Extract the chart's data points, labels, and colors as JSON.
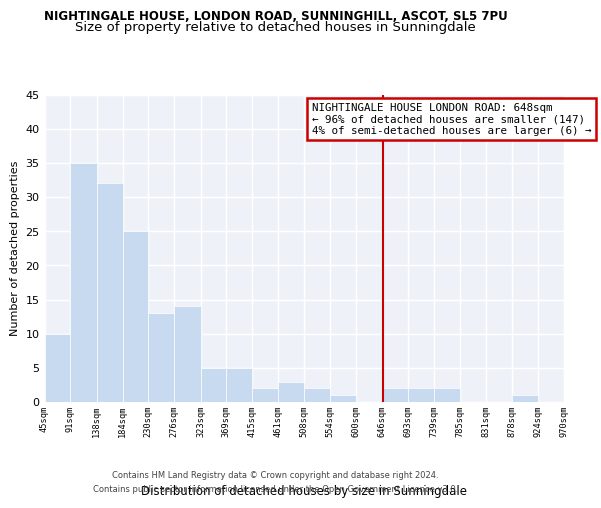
{
  "title": "NIGHTINGALE HOUSE, LONDON ROAD, SUNNINGHILL, ASCOT, SL5 7PU",
  "subtitle": "Size of property relative to detached houses in Sunningdale",
  "xlabel": "Distribution of detached houses by size in Sunningdale",
  "ylabel": "Number of detached properties",
  "bar_edges": [
    45,
    91,
    138,
    184,
    230,
    276,
    323,
    369,
    415,
    461,
    508,
    554,
    600,
    646,
    693,
    739,
    785,
    831,
    878,
    924,
    970
  ],
  "bar_heights": [
    10,
    35,
    32,
    25,
    13,
    14,
    5,
    5,
    2,
    3,
    2,
    1,
    0,
    2,
    2,
    2,
    0,
    0,
    1,
    0
  ],
  "bar_color": "#c8daf0",
  "bar_edge_color": "#ffffff",
  "vline_x": 648,
  "vline_color": "#cc0000",
  "annotation_box_text": "NIGHTINGALE HOUSE LONDON ROAD: 648sqm\n← 96% of detached houses are smaller (147)\n4% of semi-detached houses are larger (6) →",
  "ylim": [
    0,
    45
  ],
  "yticks": [
    0,
    5,
    10,
    15,
    20,
    25,
    30,
    35,
    40,
    45
  ],
  "tick_labels": [
    "45sqm",
    "91sqm",
    "138sqm",
    "184sqm",
    "230sqm",
    "276sqm",
    "323sqm",
    "369sqm",
    "415sqm",
    "461sqm",
    "508sqm",
    "554sqm",
    "600sqm",
    "646sqm",
    "693sqm",
    "739sqm",
    "785sqm",
    "831sqm",
    "878sqm",
    "924sqm",
    "970sqm"
  ],
  "footer_line1": "Contains HM Land Registry data © Crown copyright and database right 2024.",
  "footer_line2": "Contains public sector information licensed under the Open Government Licence v3.0.",
  "bg_color": "#eef2f8",
  "grid_color": "#ffffff",
  "title_fontsize": 8.5,
  "subtitle_fontsize": 9.5,
  "ann_box_edge_color": "#cc0000",
  "ann_box_face_color": "#ffffff",
  "ann_fontsize": 7.8
}
